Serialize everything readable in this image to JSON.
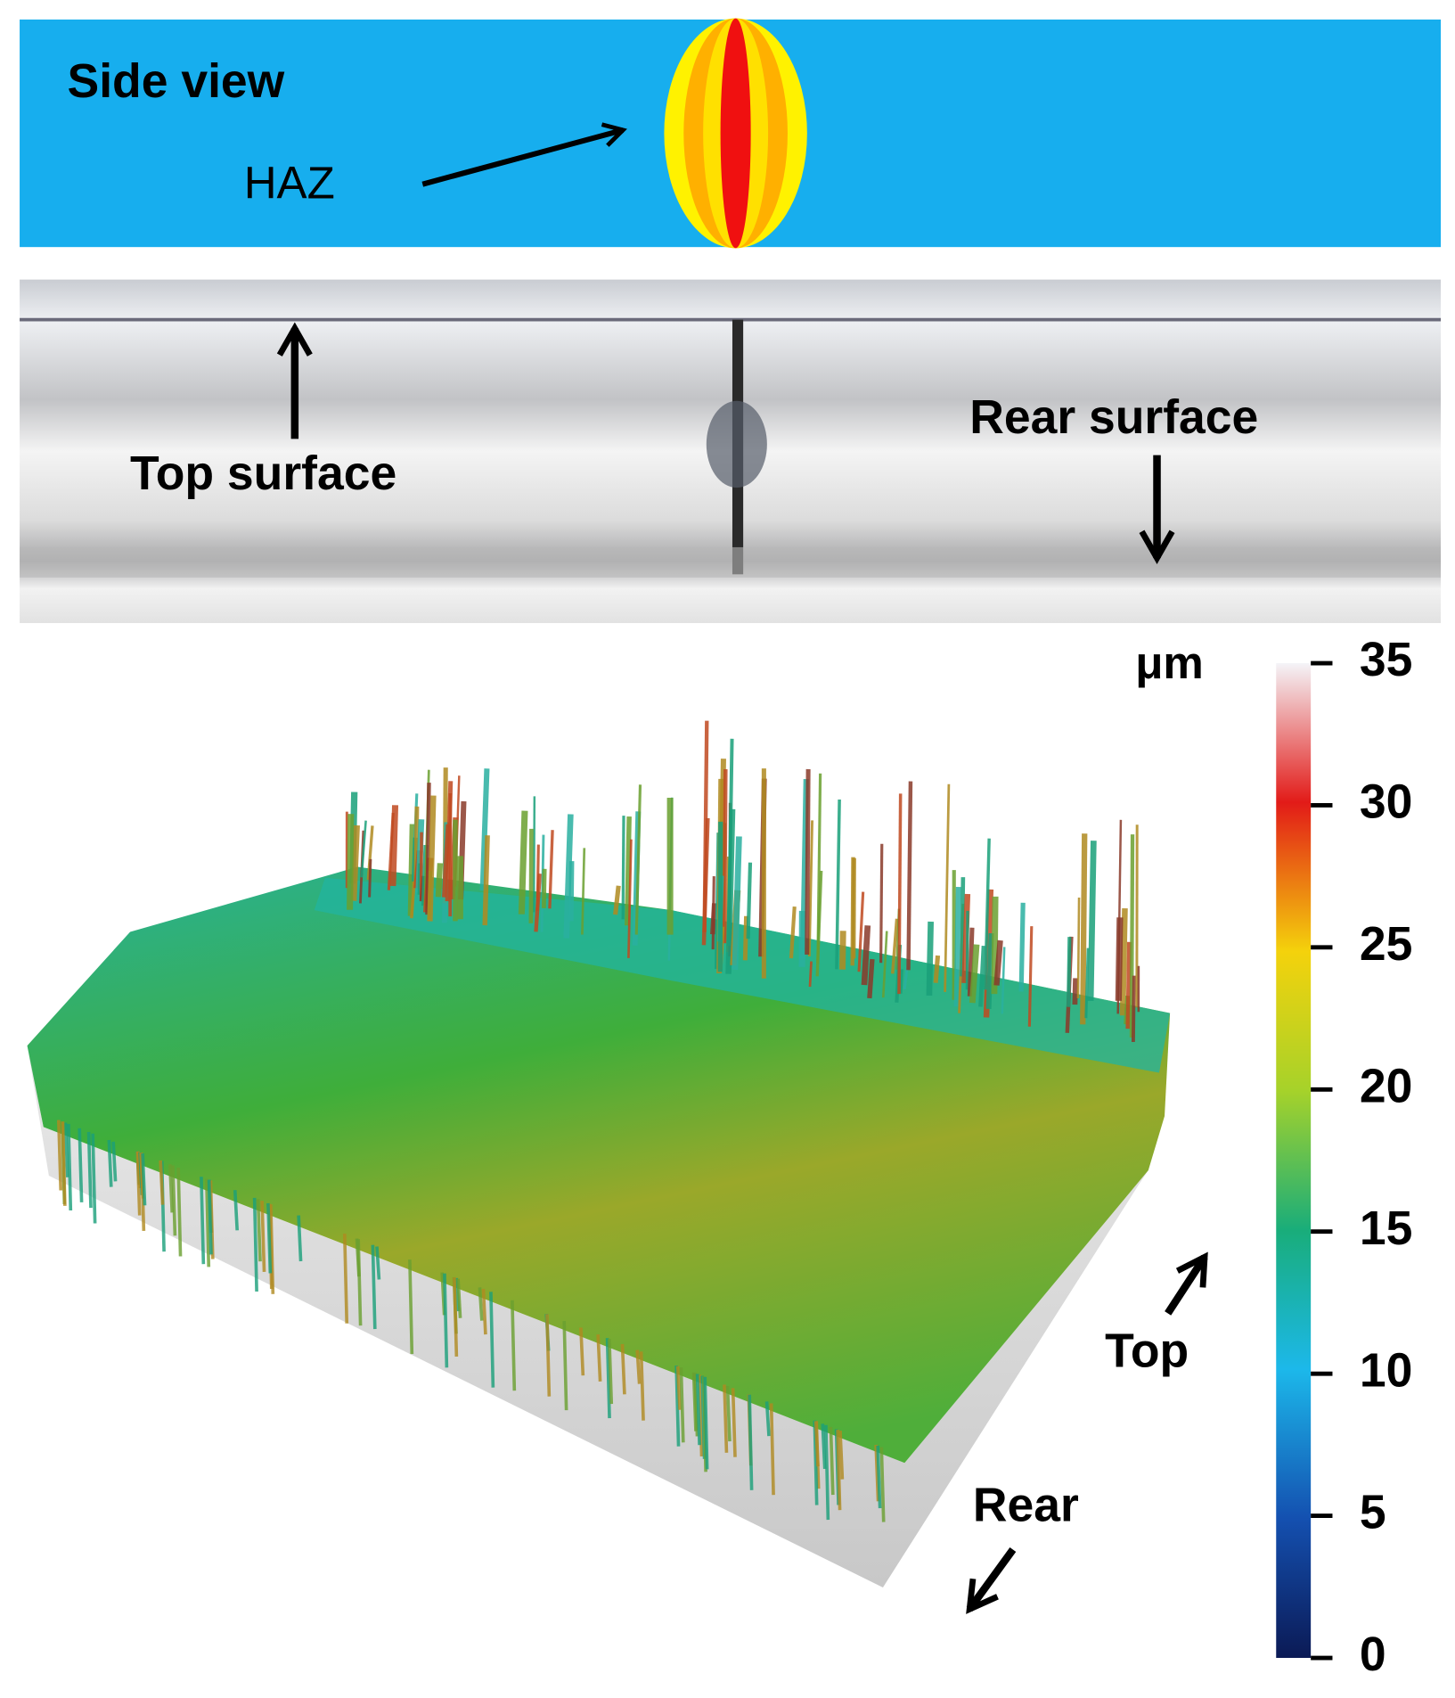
{
  "side_view": {
    "title": "Side view",
    "label": "HAZ"
  },
  "photo": {
    "top_label": "Top surface",
    "rear_label": "Rear surface"
  },
  "surface_plot": {
    "unit": "μm",
    "ticks": [
      0,
      5,
      10,
      15,
      20,
      25,
      30,
      35
    ],
    "top_label": "Top",
    "rear_label": "Rear"
  }
}
